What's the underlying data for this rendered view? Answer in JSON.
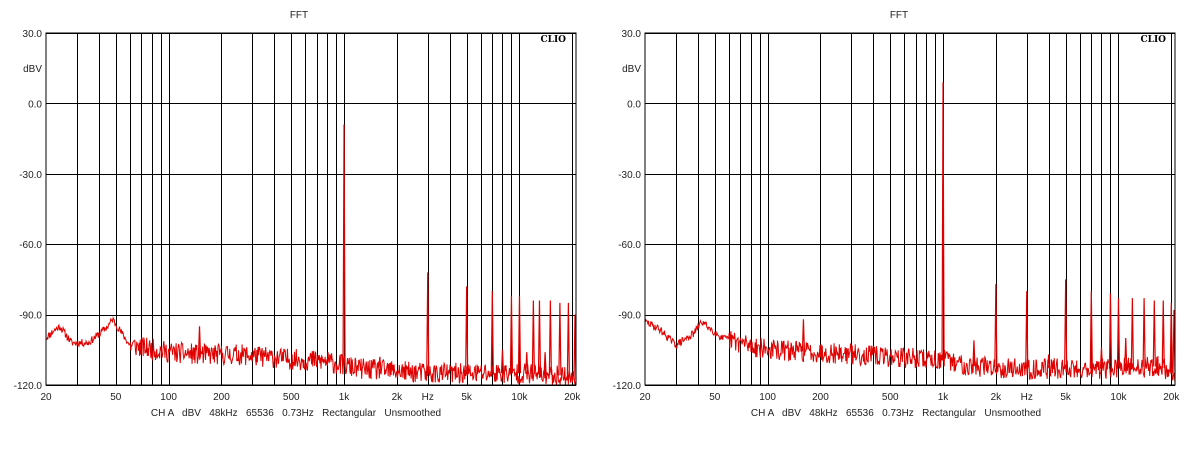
{
  "colors": {
    "trace": "#e00000",
    "grid": "#000000",
    "background": "#ffffff"
  },
  "chart_data": [
    {
      "type": "line",
      "title": "FFT",
      "brand": "CLIO",
      "ylabel": "dBV",
      "footer": "CH A   dBV   48kHz   65536   0.73Hz   Rectangular   Unsmoothed",
      "x_scale": "log",
      "xlim": [
        20,
        21000
      ],
      "ylim": [
        -120,
        30
      ],
      "grid": true,
      "y_ticks": [
        {
          "value": 30,
          "label": "30.0"
        },
        {
          "value": 0,
          "label": "0.0"
        },
        {
          "value": -30,
          "label": "-30.0"
        },
        {
          "value": -60,
          "label": "-60.0"
        },
        {
          "value": -90,
          "label": "-90.0"
        },
        {
          "value": -120,
          "label": "-120.0"
        }
      ],
      "y_unit_label_value": 15,
      "x_ticks": [
        {
          "value": 20,
          "label": "20"
        },
        {
          "value": 50,
          "label": "50"
        },
        {
          "value": 100,
          "label": "100"
        },
        {
          "value": 200,
          "label": "200"
        },
        {
          "value": 500,
          "label": "500"
        },
        {
          "value": 1000,
          "label": "1k"
        },
        {
          "value": 2000,
          "label": "2k"
        },
        {
          "value": 3000,
          "label": "Hz"
        },
        {
          "value": 5000,
          "label": "5k"
        },
        {
          "value": 10000,
          "label": "10k"
        },
        {
          "value": 20000,
          "label": "20k"
        }
      ],
      "x_gridlines": [
        30,
        40,
        50,
        60,
        70,
        80,
        90,
        100,
        200,
        300,
        400,
        500,
        600,
        700,
        800,
        900,
        1000,
        2000,
        3000,
        4000,
        5000,
        6000,
        7000,
        8000,
        9000,
        10000,
        20000
      ],
      "noise_floor": [
        {
          "f": 20,
          "db": -100
        },
        {
          "f": 22,
          "db": -97
        },
        {
          "f": 24,
          "db": -95
        },
        {
          "f": 28,
          "db": -102
        },
        {
          "f": 35,
          "db": -102
        },
        {
          "f": 45,
          "db": -95
        },
        {
          "f": 48,
          "db": -92
        },
        {
          "f": 60,
          "db": -103
        },
        {
          "f": 100,
          "db": -106
        },
        {
          "f": 150,
          "db": -107
        },
        {
          "f": 250,
          "db": -107
        },
        {
          "f": 500,
          "db": -109
        },
        {
          "f": 800,
          "db": -110
        },
        {
          "f": 1200,
          "db": -113
        },
        {
          "f": 3000,
          "db": -115
        },
        {
          "f": 10000,
          "db": -115
        },
        {
          "f": 18000,
          "db": -116
        },
        {
          "f": 21000,
          "db": -118
        }
      ],
      "series": [
        {
          "values": [
            {
              "f": 150,
              "db": -95
            },
            {
              "f": 1000,
              "db": -9
            },
            {
              "f": 1600,
              "db": -108
            },
            {
              "f": 3000,
              "db": -72
            },
            {
              "f": 5000,
              "db": -78
            },
            {
              "f": 7000,
              "db": -80
            },
            {
              "f": 8000,
              "db": -105
            },
            {
              "f": 9000,
              "db": -82
            },
            {
              "f": 10000,
              "db": -82
            },
            {
              "f": 11000,
              "db": -106
            },
            {
              "f": 12000,
              "db": -84
            },
            {
              "f": 13000,
              "db": -84
            },
            {
              "f": 14000,
              "db": -106
            },
            {
              "f": 15000,
              "db": -84
            },
            {
              "f": 17000,
              "db": -85
            },
            {
              "f": 19000,
              "db": -85
            },
            {
              "f": 21000,
              "db": -90
            }
          ]
        }
      ]
    },
    {
      "type": "line",
      "title": "FFT",
      "brand": "CLIO",
      "ylabel": "dBV",
      "footer": "CH A   dBV   48kHz   65536   0.73Hz   Rectangular   Unsmoothed",
      "x_scale": "log",
      "xlim": [
        20,
        21000
      ],
      "ylim": [
        -120,
        30
      ],
      "grid": true,
      "y_ticks": [
        {
          "value": 30,
          "label": "30.0"
        },
        {
          "value": 0,
          "label": "0.0"
        },
        {
          "value": -30,
          "label": "-30.0"
        },
        {
          "value": -60,
          "label": "-60.0"
        },
        {
          "value": -90,
          "label": "-90.0"
        },
        {
          "value": -120,
          "label": "-120.0"
        }
      ],
      "y_unit_label_value": 15,
      "x_ticks": [
        {
          "value": 20,
          "label": "20"
        },
        {
          "value": 50,
          "label": "50"
        },
        {
          "value": 100,
          "label": "100"
        },
        {
          "value": 200,
          "label": "200"
        },
        {
          "value": 500,
          "label": "500"
        },
        {
          "value": 1000,
          "label": "1k"
        },
        {
          "value": 2000,
          "label": "2k"
        },
        {
          "value": 3000,
          "label": "Hz"
        },
        {
          "value": 5000,
          "label": "5k"
        },
        {
          "value": 10000,
          "label": "10k"
        },
        {
          "value": 20000,
          "label": "20k"
        }
      ],
      "x_gridlines": [
        30,
        40,
        50,
        60,
        70,
        80,
        90,
        100,
        200,
        300,
        400,
        500,
        600,
        700,
        800,
        900,
        1000,
        2000,
        3000,
        4000,
        5000,
        6000,
        7000,
        8000,
        9000,
        10000,
        20000
      ],
      "noise_floor": [
        {
          "f": 20,
          "db": -93
        },
        {
          "f": 24,
          "db": -96
        },
        {
          "f": 30,
          "db": -103
        },
        {
          "f": 38,
          "db": -98
        },
        {
          "f": 42,
          "db": -93
        },
        {
          "f": 55,
          "db": -100
        },
        {
          "f": 100,
          "db": -105
        },
        {
          "f": 200,
          "db": -106
        },
        {
          "f": 500,
          "db": -108
        },
        {
          "f": 900,
          "db": -109
        },
        {
          "f": 1100,
          "db": -110
        },
        {
          "f": 1500,
          "db": -112
        },
        {
          "f": 3000,
          "db": -113
        },
        {
          "f": 10000,
          "db": -113
        },
        {
          "f": 17000,
          "db": -112
        },
        {
          "f": 21000,
          "db": -115
        }
      ],
      "series": [
        {
          "values": [
            {
              "f": 160,
              "db": -92
            },
            {
              "f": 1000,
              "db": 9
            },
            {
              "f": 1500,
              "db": -101
            },
            {
              "f": 2000,
              "db": -77
            },
            {
              "f": 3000,
              "db": -80
            },
            {
              "f": 4000,
              "db": -107
            },
            {
              "f": 5000,
              "db": -75
            },
            {
              "f": 7000,
              "db": -80
            },
            {
              "f": 8000,
              "db": -104
            },
            {
              "f": 9000,
              "db": -81
            },
            {
              "f": 10000,
              "db": -83
            },
            {
              "f": 11000,
              "db": -100
            },
            {
              "f": 12000,
              "db": -83
            },
            {
              "f": 14000,
              "db": -83
            },
            {
              "f": 16000,
              "db": -84
            },
            {
              "f": 18000,
              "db": -84
            },
            {
              "f": 20000,
              "db": -85
            },
            {
              "f": 21000,
              "db": -88
            }
          ]
        }
      ]
    }
  ]
}
